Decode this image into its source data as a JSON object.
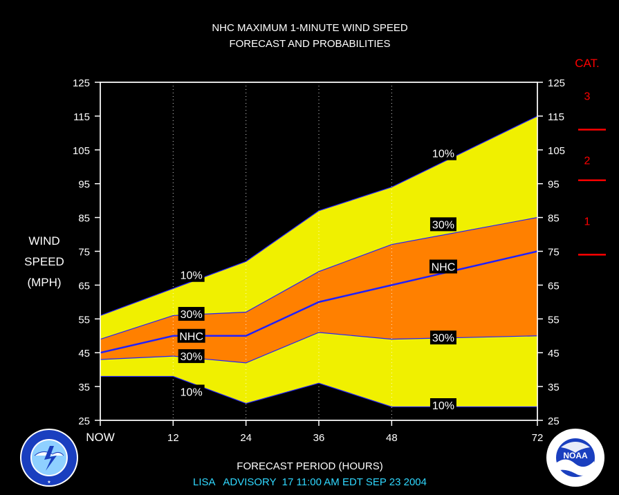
{
  "chart_data": {
    "type": "area",
    "title": "NHC MAXIMUM 1-MINUTE WIND SPEED",
    "subtitle": "FORECAST AND PROBABILITIES",
    "xlabel": "FORECAST PERIOD (HOURS)",
    "ylabel": [
      "WIND",
      "SPEED",
      "(MPH)"
    ],
    "footer": "LISA   ADVISORY  17 11:00 AM EDT SEP 23 2004",
    "ylim": [
      25,
      125
    ],
    "xlim": [
      0,
      72
    ],
    "yticks": [
      "25",
      "35",
      "45",
      "55",
      "65",
      "75",
      "85",
      "95",
      "105",
      "115",
      "125"
    ],
    "xticks": [
      {
        "x": 0,
        "label": "NOW"
      },
      {
        "x": 12,
        "label": "12"
      },
      {
        "x": 24,
        "label": "24"
      },
      {
        "x": 36,
        "label": "36"
      },
      {
        "x": 48,
        "label": "48"
      },
      {
        "x": 72,
        "label": "72"
      }
    ],
    "x": [
      0,
      12,
      24,
      36,
      48,
      72
    ],
    "series": [
      {
        "name": "10%",
        "role": "upper-10",
        "values": [
          56,
          64,
          72,
          87,
          94,
          115
        ]
      },
      {
        "name": "30%",
        "role": "upper-30",
        "values": [
          49,
          56,
          57,
          69,
          77,
          85
        ]
      },
      {
        "name": "NHC",
        "role": "nhc",
        "values": [
          45,
          50,
          50,
          60,
          65,
          75
        ]
      },
      {
        "name": "30%",
        "role": "lower-30",
        "values": [
          43,
          44,
          42,
          51,
          49,
          50
        ]
      },
      {
        "name": "10%",
        "role": "lower-10",
        "values": [
          38,
          38,
          30,
          36,
          29,
          29
        ]
      }
    ],
    "labels": [
      {
        "text": "10%",
        "x": 15,
        "y": 68
      },
      {
        "text": "30%",
        "x": 15,
        "y": 56.5
      },
      {
        "text": "NHC",
        "x": 15,
        "y": 50
      },
      {
        "text": "30%",
        "x": 15,
        "y": 44
      },
      {
        "text": "10%",
        "x": 15,
        "y": 33.5
      },
      {
        "text": "10%",
        "x": 56.5,
        "y": 104
      },
      {
        "text": "30%",
        "x": 56.5,
        "y": 83
      },
      {
        "text": "NHC",
        "x": 56.5,
        "y": 70.5
      },
      {
        "text": "30%",
        "x": 56.5,
        "y": 49.5
      },
      {
        "text": "10%",
        "x": 56.5,
        "y": 29.5
      }
    ],
    "grid_verticals": [
      12,
      24,
      36,
      48
    ],
    "category_panel": {
      "header": "CAT.",
      "thresholds": [
        74,
        96,
        111
      ],
      "labels": [
        {
          "text": "1",
          "y": 84
        },
        {
          "text": "2",
          "y": 102
        },
        {
          "text": "3",
          "y": 121
        }
      ]
    },
    "colors": {
      "background": "#000000",
      "outer_band": "#f0f000",
      "inner_band": "#ff8000",
      "line": "#2020ff",
      "category": "#ff0000",
      "footer": "#30d8ff"
    }
  },
  "logos": {
    "left": {
      "icon": "nws-logo-icon",
      "text": "NATIONAL WEATHER SERVICE"
    },
    "right": {
      "icon": "noaa-logo-icon",
      "text": "NOAA",
      "ring": "U.S. DEPARTMENT OF COMMERCE"
    }
  }
}
